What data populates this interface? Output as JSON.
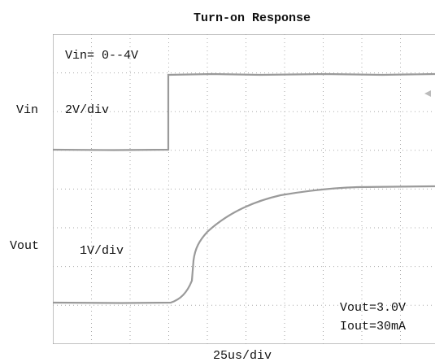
{
  "title": "Turn-on Response",
  "channels": [
    {
      "name": "Vin",
      "scale": "2V/div",
      "note": "Vin= 0--4V"
    },
    {
      "name": "Vout",
      "scale": "1V/div"
    }
  ],
  "conditions": [
    "Vout=3.0V",
    "Iout=30mA"
  ],
  "timebase": "25us/div"
}
